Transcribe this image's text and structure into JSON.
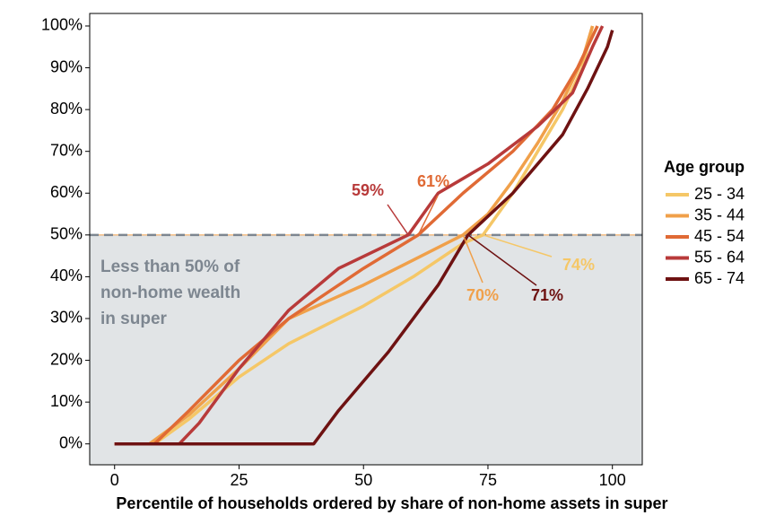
{
  "chart_data": {
    "type": "line",
    "xlabel": "Percentile of households ordered by share of non-home assets in super",
    "legend_title": "Age group",
    "legend": "right",
    "xlim": [
      -5,
      106
    ],
    "ylim": [
      -5,
      103
    ],
    "xticks": [
      0,
      25,
      50,
      75,
      100
    ],
    "yticks": [
      {
        "value": 0,
        "label": "0%"
      },
      {
        "value": 10,
        "label": "10%"
      },
      {
        "value": 20,
        "label": "20%"
      },
      {
        "value": 30,
        "label": "30%"
      },
      {
        "value": 40,
        "label": "40%"
      },
      {
        "value": 50,
        "label": "50%"
      },
      {
        "value": 60,
        "label": "60%"
      },
      {
        "value": 70,
        "label": "70%"
      },
      {
        "value": 80,
        "label": "80%"
      },
      {
        "value": 90,
        "label": "90%"
      },
      {
        "value": 100,
        "label": "100%"
      }
    ],
    "threshold": 50,
    "shade_text": [
      "Less than 50% of",
      "non-home wealth",
      "in super"
    ],
    "series": [
      {
        "name": "25 - 34",
        "color": "#f5c767",
        "x": [
          0,
          8,
          15,
          25,
          35,
          50,
          60,
          70,
          74,
          80,
          85,
          90,
          94,
          96
        ],
        "values": [
          0,
          0,
          6,
          16,
          24,
          33,
          40,
          48,
          50,
          60,
          70,
          80,
          90,
          100
        ]
      },
      {
        "name": "35 - 44",
        "color": "#f0a04a",
        "x": [
          0,
          7,
          15,
          25,
          35,
          50,
          60,
          70,
          75,
          80,
          85,
          90,
          94,
          96
        ],
        "values": [
          0,
          0,
          7,
          18,
          30,
          38,
          44,
          50,
          55,
          63,
          72,
          82,
          92,
          100
        ]
      },
      {
        "name": "45 - 54",
        "color": "#e06a35",
        "x": [
          0,
          8,
          15,
          25,
          35,
          50,
          61,
          70,
          80,
          88,
          93,
          97
        ],
        "values": [
          0,
          0,
          8,
          20,
          30,
          42,
          50,
          60,
          70,
          80,
          90,
          100
        ]
      },
      {
        "name": "55 - 64",
        "color": "#b83a3a",
        "x": [
          0,
          13,
          17,
          25,
          35,
          45,
          59,
          65,
          75,
          85,
          92,
          96,
          98
        ],
        "values": [
          0,
          0,
          5,
          18,
          32,
          42,
          50,
          60,
          67,
          76,
          84,
          95,
          100
        ]
      },
      {
        "name": "65 - 74",
        "color": "#6e1212",
        "x": [
          0,
          40,
          45,
          55,
          65,
          71,
          80,
          90,
          95,
          99,
          100
        ],
        "values": [
          0,
          0,
          8,
          22,
          38,
          50,
          60,
          74,
          85,
          95,
          99
        ]
      }
    ],
    "annotations": [
      {
        "value": 59,
        "label": "59%",
        "series": 3
      },
      {
        "value": 61,
        "label": "61%",
        "series": 2
      },
      {
        "value": 70,
        "label": "70%",
        "series": 1
      },
      {
        "value": 71,
        "label": "71%",
        "series": 4
      },
      {
        "value": 74,
        "label": "74%",
        "series": 0
      }
    ]
  }
}
